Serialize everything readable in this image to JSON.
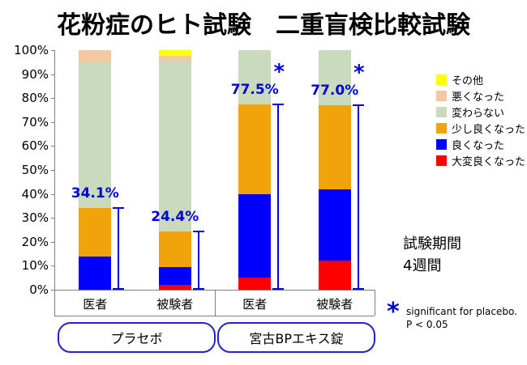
{
  "title": "花粉症のヒト試験　二重盲検比較試験",
  "colors": {
    "accent_blue": "#0000DD",
    "axis_gray": "#808080",
    "group_box_border": "#2222CC",
    "text_black": "#000000"
  },
  "chart_data": {
    "type": "bar",
    "stacked": true,
    "ylim": [
      0,
      100
    ],
    "ytick_labels": [
      "0%",
      "10%",
      "20%",
      "30%",
      "40%",
      "50%",
      "60%",
      "70%",
      "80%",
      "90%",
      "100%"
    ],
    "categories": [
      "医者",
      "被験者",
      "医者",
      "被験者"
    ],
    "groups": [
      {
        "label": "プラセボ",
        "bars": [
          0,
          1
        ]
      },
      {
        "label": "宮古BPエキス錠",
        "bars": [
          2,
          3
        ]
      }
    ],
    "series": [
      {
        "name": "大変良くなった",
        "color": "#FF0000",
        "values": [
          0,
          2,
          5,
          12
        ]
      },
      {
        "name": "良くなった",
        "color": "#0000FF",
        "values": [
          14,
          7.4,
          35,
          30
        ]
      },
      {
        "name": "少し良くなった",
        "color": "#F0A30A",
        "values": [
          20.1,
          15,
          37.5,
          35
        ]
      },
      {
        "name": "変わらない",
        "color": "#C9DBBC",
        "values": [
          60.9,
          71.1,
          22.5,
          23
        ]
      },
      {
        "name": "悪くなった",
        "color": "#F5C8A4",
        "values": [
          5,
          2,
          0,
          0
        ]
      },
      {
        "name": "その他",
        "color": "#FFFF00",
        "values": [
          0,
          2.5,
          0,
          0
        ]
      }
    ],
    "annotations": [
      {
        "bar": 0,
        "label": "34.1%",
        "value": 34.1,
        "significant": false
      },
      {
        "bar": 1,
        "label": "24.4%",
        "value": 24.4,
        "significant": false
      },
      {
        "bar": 2,
        "label": "77.5%",
        "value": 77.5,
        "significant": true
      },
      {
        "bar": 3,
        "label": "77.0%",
        "value": 77.0,
        "significant": true
      }
    ],
    "legend_position": "right"
  },
  "notes": {
    "period_line1": "試験期間",
    "period_line2": "4週間",
    "star": "*",
    "sig_line1": "significant for placebo.",
    "sig_line2": "P < 0.05"
  }
}
